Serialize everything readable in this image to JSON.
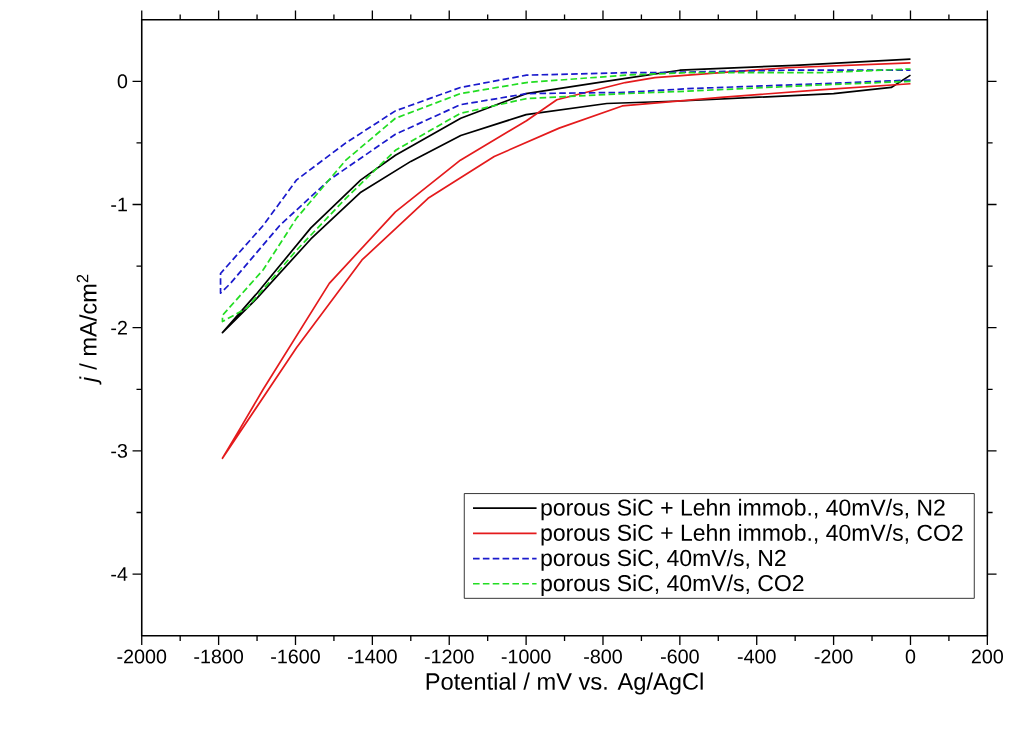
{
  "chart_data": {
    "type": "line",
    "xlabel": "Potential / mV vs. Ag/AgCl",
    "ylabel": "*j* / mA/cm$^{2}$",
    "xlim": [
      -2000,
      200
    ],
    "xticks": [
      -2000,
      -1800,
      -1600,
      -1400,
      -1200,
      -1000,
      -800,
      -600,
      -400,
      -200,
      0,
      200
    ],
    "ylim": [
      -4.5,
      0.5
    ],
    "yticks": [
      -4,
      -3,
      -2,
      -1,
      0
    ],
    "legend": "bottom right",
    "grid": false,
    "marker": "none",
    "series": [
      {
        "name": "porous SiC + Lehn immob., 40mV/s, N2",
        "color": "#000000",
        "line_style": "solid",
        "x": [
          0,
          -50,
          -200,
          -400,
          -600,
          -790,
          -1000,
          -1170,
          -1300,
          -1430,
          -1560,
          -1700,
          -1790,
          -1700,
          -1560,
          -1430,
          -1340,
          -1170,
          -1000,
          -750,
          -600,
          -300,
          0
        ],
        "values": [
          0.05,
          -0.05,
          -0.1,
          -0.13,
          -0.16,
          -0.18,
          -0.27,
          -0.44,
          -0.65,
          -0.9,
          -1.28,
          -1.76,
          -2.04,
          -1.72,
          -1.19,
          -0.8,
          -0.6,
          -0.3,
          -0.1,
          0.02,
          0.09,
          0.13,
          0.18
        ]
      },
      {
        "name": "porous SiC + Lehn immob., 40mV/s, CO2",
        "color": "#e41a1c",
        "line_style": "solid",
        "x": [
          0,
          -236,
          -493,
          -750,
          -914,
          -1083,
          -1255,
          -1427,
          -1597,
          -1790,
          -1750,
          -1684,
          -1512,
          -1340,
          -1171,
          -999,
          -920,
          -742,
          -665,
          -323,
          0
        ],
        "values": [
          -0.02,
          -0.07,
          -0.13,
          -0.2,
          -0.38,
          -0.61,
          -0.95,
          -1.45,
          -2.16,
          -3.06,
          -2.85,
          -2.5,
          -1.64,
          -1.06,
          -0.64,
          -0.32,
          -0.15,
          -0.01,
          0.03,
          0.11,
          0.15
        ]
      },
      {
        "name": "porous SiC, 40mV/s, N2",
        "color": "#1a1acc",
        "line_style": "dashed",
        "x": [
          0,
          -236,
          -580,
          -742,
          -999,
          -1171,
          -1340,
          -1512,
          -1641,
          -1769,
          -1795,
          -1795,
          -1684,
          -1597,
          -1469,
          -1340,
          -1171,
          -999,
          -742,
          -665,
          -323,
          0
        ],
        "values": [
          0.01,
          -0.02,
          -0.06,
          -0.09,
          -0.1,
          -0.19,
          -0.43,
          -0.8,
          -1.17,
          -1.64,
          -1.72,
          -1.56,
          -1.17,
          -0.8,
          -0.5,
          -0.24,
          -0.05,
          0.05,
          0.07,
          0.07,
          0.09,
          0.09
        ]
      },
      {
        "name": "porous SiC, 40mV/s, CO2",
        "color": "#22dd22",
        "line_style": "dashed",
        "x": [
          0,
          -236,
          -580,
          -742,
          -999,
          -1171,
          -1340,
          -1469,
          -1597,
          -1726,
          -1790,
          -1790,
          -1684,
          -1597,
          -1469,
          -1340,
          -1171,
          -999,
          -742,
          -580,
          -236,
          0
        ],
        "values": [
          0.0,
          -0.03,
          -0.08,
          -0.1,
          -0.14,
          -0.26,
          -0.56,
          -0.95,
          -1.37,
          -1.84,
          -1.95,
          -1.9,
          -1.53,
          -1.11,
          -0.64,
          -0.3,
          -0.1,
          -0.01,
          0.05,
          0.07,
          0.07,
          0.1
        ]
      }
    ]
  }
}
